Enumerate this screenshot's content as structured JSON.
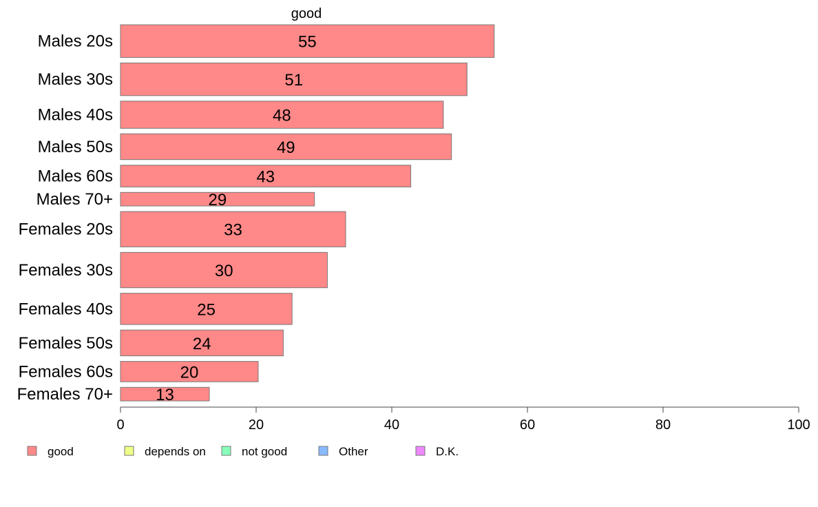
{
  "chart_data": {
    "type": "bar",
    "orientation": "horizontal",
    "title": "good",
    "categories": [
      "Males 20s",
      "Males 30s",
      "Males 40s",
      "Males 50s",
      "Males 60s",
      "Males 70+",
      "Females 20s",
      "Females 30s",
      "Females 40s",
      "Females 50s",
      "Females 60s",
      "Females 70+"
    ],
    "series": [
      {
        "name": "good",
        "color": "#ff8888",
        "values": [
          55,
          51,
          48,
          49,
          43,
          29,
          33,
          30,
          25,
          24,
          20,
          13
        ],
        "exact_values": [
          55.1,
          51.1,
          47.6,
          48.8,
          42.8,
          28.6,
          33.2,
          30.5,
          25.3,
          24.0,
          20.3,
          13.1
        ]
      }
    ],
    "bar_relative_widths": [
      48,
      48,
      40,
      38,
      32,
      20,
      52,
      52,
      46,
      38,
      30,
      20
    ],
    "xlim": [
      0,
      100
    ],
    "xticks": [
      "0",
      "20",
      "40",
      "60",
      "80",
      "100"
    ],
    "grid": false,
    "legend": {
      "position": "bottom-left",
      "items": [
        {
          "label": "good",
          "color": "#ff8888"
        },
        {
          "label": "depends on",
          "color": "#eeff88"
        },
        {
          "label": "not good",
          "color": "#88ffbb"
        },
        {
          "label": "Other",
          "color": "#88bbff"
        },
        {
          "label": "D.K.",
          "color": "#ee88ff"
        }
      ]
    },
    "bar_stroke_color": "#777777",
    "axis_color": "#444444"
  }
}
